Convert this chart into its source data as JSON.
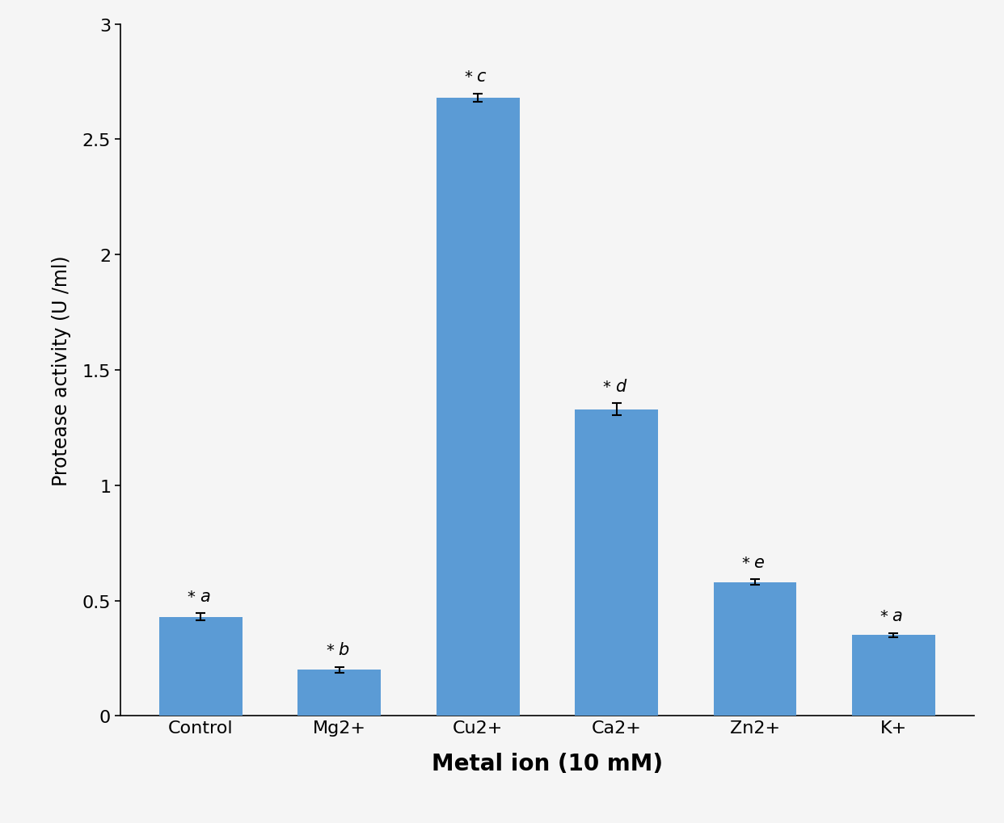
{
  "categories": [
    "Control",
    "Mg2+",
    "Cu2+",
    "Ca2+",
    "Zn2+",
    "K+"
  ],
  "values": [
    0.43,
    0.2,
    2.68,
    1.33,
    0.58,
    0.35
  ],
  "errors": [
    0.015,
    0.012,
    0.018,
    0.025,
    0.012,
    0.01
  ],
  "labels": [
    "*a",
    "*b",
    "*c",
    "*d",
    "*e",
    "*a"
  ],
  "bar_color": "#5b9bd5",
  "xlabel": "Metal ion (10 mM)",
  "ylabel": "Protease activity (U /ml)",
  "ylim": [
    0,
    3.0
  ],
  "yticks": [
    0,
    0.5,
    1.0,
    1.5,
    2.0,
    2.5,
    3.0
  ],
  "bar_width": 0.6,
  "figsize": [
    12.42,
    10.2
  ],
  "dpi": 100,
  "background_color": "#f5f5f5",
  "tick_fontsize": 16,
  "annotation_fontsize": 15,
  "xlabel_fontsize": 20,
  "ylabel_fontsize": 17
}
